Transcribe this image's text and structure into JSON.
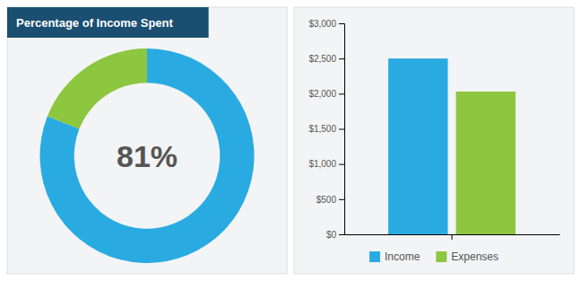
{
  "chart_data": [
    {
      "type": "donut",
      "title": "Percentage of Income Spent",
      "categories": [
        null,
        null
      ],
      "values": [
        81,
        19
      ],
      "colors": [
        "#29abe2",
        "#8dc63f"
      ],
      "annotations": [
        "81%"
      ]
    },
    {
      "type": "bar",
      "categories": [
        null
      ],
      "series": [
        {
          "name": "Income",
          "color": "#29abe2",
          "values": [
            2500
          ]
        },
        {
          "name": "Expenses",
          "color": "#8dc63f",
          "values": [
            2030
          ]
        }
      ],
      "ylim": [
        0,
        3000
      ],
      "yticks": [
        {
          "value": 0,
          "label": "$0"
        },
        {
          "value": 500,
          "label": "$500"
        },
        {
          "value": 1000,
          "label": "$1,000"
        },
        {
          "value": 1500,
          "label": "$1,500"
        },
        {
          "value": 2000,
          "label": "$2,000"
        },
        {
          "value": 2500,
          "label": "$2,500"
        },
        {
          "value": 3000,
          "label": "$3,000"
        }
      ],
      "grid": false,
      "legend": "bottom",
      "tick_labels": "y"
    }
  ]
}
